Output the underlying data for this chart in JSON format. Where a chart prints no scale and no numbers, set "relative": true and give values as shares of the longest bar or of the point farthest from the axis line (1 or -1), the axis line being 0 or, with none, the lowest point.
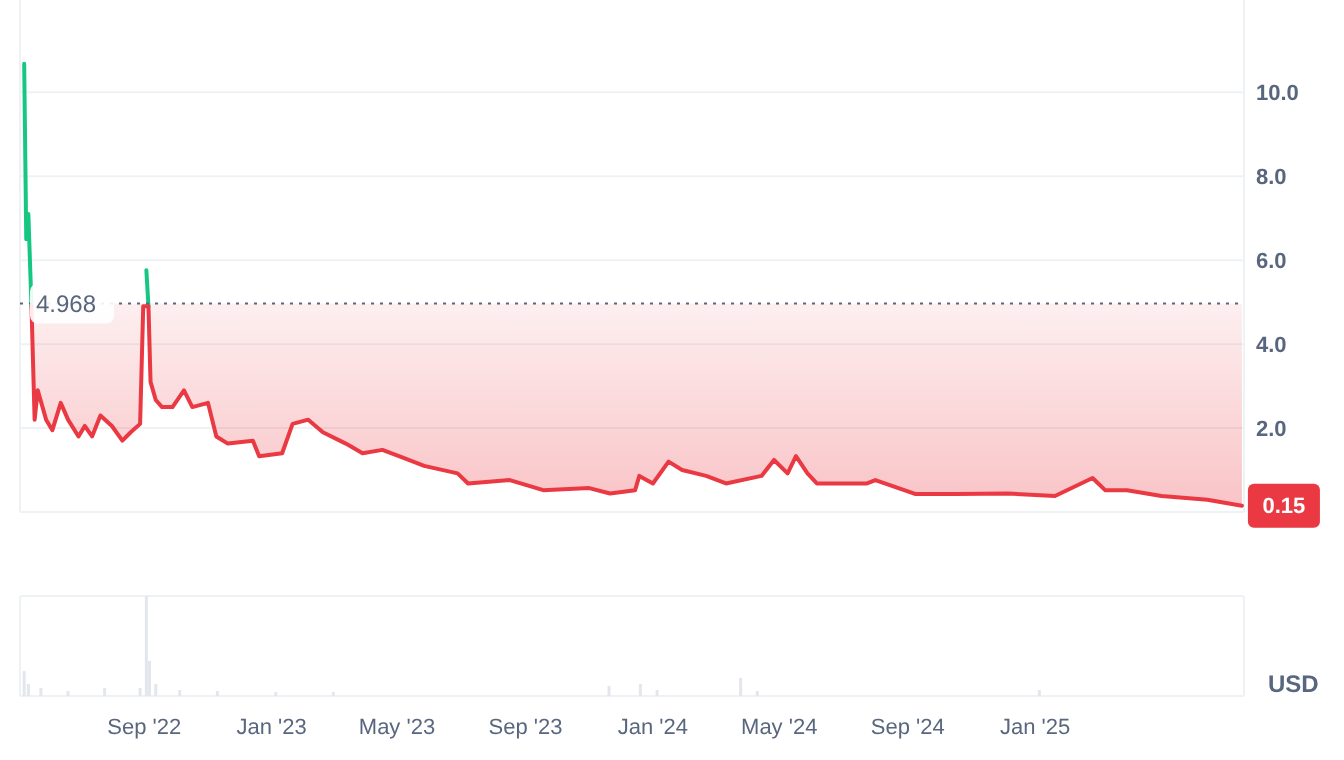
{
  "chart_data": [
    {
      "type": "line",
      "xlim": [
        "2022-05-05",
        "2025-07-20"
      ],
      "ylim": [
        0,
        12.2
      ],
      "yticks": [
        {
          "value": 0,
          "label": null
        },
        {
          "value": 2,
          "label": "2.0"
        },
        {
          "value": 4,
          "label": "4.0"
        },
        {
          "value": 6,
          "label": "6.0"
        },
        {
          "value": 8,
          "label": "8.0"
        },
        {
          "value": 10,
          "label": "10.0"
        }
      ],
      "grid": "y",
      "tick_labels": "y",
      "series": [
        {
          "color": "#16c784",
          "x": [
            "2022-05-09",
            "2022-05-11",
            "2022-05-13",
            "2022-05-16",
            "2022-08-31",
            "2022-09-03",
            "2022-09-05"
          ],
          "values": [
            10.68,
            6.5,
            7.1,
            4.9,
            null,
            5.76,
            4.9
          ]
        },
        {
          "color": "#ea3943",
          "x": [
            "2022-05-16",
            "2022-05-19",
            "2022-05-22",
            "2022-05-30",
            "2022-06-05",
            "2022-06-13",
            "2022-06-20",
            "2022-06-30",
            "2022-07-06",
            "2022-07-13",
            "2022-07-21",
            "2022-08-01",
            "2022-08-11",
            "2022-08-19",
            "2022-08-28",
            "2022-08-31",
            "2022-09-05",
            "2022-09-07",
            "2022-09-12",
            "2022-09-18",
            "2022-09-28",
            "2022-10-09",
            "2022-10-17",
            "2022-11-01",
            "2022-11-09",
            "2022-11-20",
            "2022-12-14",
            "2022-12-20",
            "2023-01-11",
            "2023-01-21",
            "2023-02-05",
            "2023-02-19",
            "2023-03-13",
            "2023-03-29",
            "2023-04-17",
            "2023-05-06",
            "2023-05-27",
            "2023-06-28",
            "2023-07-08",
            "2023-08-17",
            "2023-09-18",
            "2023-11-01",
            "2023-11-21",
            "2023-12-15",
            "2023-12-19",
            "2024-01-01",
            "2024-01-16",
            "2024-01-29",
            "2024-02-21",
            "2024-03-11",
            "2024-04-14",
            "2024-04-26",
            "2024-05-09",
            "2024-05-17",
            "2024-05-28",
            "2024-06-06",
            "2024-07-24",
            "2024-08-01",
            "2024-09-08",
            "2024-10-17",
            "2024-12-06",
            "2025-01-20",
            "2025-02-25",
            "2025-03-09",
            "2025-03-30",
            "2025-05-02",
            "2025-06-15",
            "2025-07-18"
          ],
          "values": [
            4.9,
            2.2,
            2.9,
            2.2,
            1.95,
            2.6,
            2.2,
            1.8,
            2.05,
            1.8,
            2.3,
            2.05,
            1.7,
            1.9,
            2.1,
            4.9,
            4.9,
            3.1,
            2.67,
            2.5,
            2.5,
            2.9,
            2.5,
            2.6,
            1.8,
            1.63,
            1.7,
            1.33,
            1.4,
            2.1,
            2.2,
            1.9,
            1.63,
            1.4,
            1.48,
            1.3,
            1.1,
            0.92,
            0.68,
            0.76,
            0.52,
            0.57,
            0.44,
            0.52,
            0.86,
            0.68,
            1.2,
            1.0,
            0.86,
            0.68,
            0.86,
            1.24,
            0.92,
            1.33,
            0.92,
            0.68,
            0.68,
            0.76,
            0.43,
            0.43,
            0.44,
            0.38,
            0.81,
            0.52,
            0.52,
            0.38,
            0.29,
            0.15
          ]
        }
      ],
      "ref_lines": [
        {
          "axis": "y",
          "value": 4.968,
          "label": "4.968",
          "color": "#58667e",
          "line_style": "dotted"
        }
      ],
      "annotations": [
        {
          "text": "0.15",
          "x": "2025-07-18",
          "y": 0.15
        }
      ]
    },
    {
      "type": "bar",
      "relative": true,
      "ylabel": "USD",
      "color": "#e3e6ec",
      "xlim": [
        "2022-05-05",
        "2025-07-20"
      ],
      "xticks": [
        {
          "value": "2022-09-01",
          "label": "Sep '22"
        },
        {
          "value": "2023-01-01",
          "label": "Jan '23"
        },
        {
          "value": "2023-05-01",
          "label": "May '23"
        },
        {
          "value": "2023-09-01",
          "label": "Sep '23"
        },
        {
          "value": "2024-01-01",
          "label": "Jan '24"
        },
        {
          "value": "2024-05-01",
          "label": "May '24"
        },
        {
          "value": "2024-09-01",
          "label": "Sep '24"
        },
        {
          "value": "2025-01-01",
          "label": "Jan '25"
        }
      ],
      "tick_labels": "x",
      "x": [
        "2022-05-09",
        "2022-05-13",
        "2022-05-25",
        "2022-06-20",
        "2022-07-25",
        "2022-08-28",
        "2022-09-03",
        "2022-09-06",
        "2022-09-12",
        "2022-10-05",
        "2022-11-10",
        "2023-01-05",
        "2023-03-01",
        "2023-11-20",
        "2023-12-20",
        "2024-01-05",
        "2024-03-25",
        "2024-04-10",
        "2025-01-05"
      ],
      "values": [
        0.25,
        0.12,
        0.08,
        0.05,
        0.08,
        0.08,
        1,
        0.35,
        0.12,
        0.06,
        0.05,
        0.04,
        0.04,
        0.1,
        0.12,
        0.06,
        0.18,
        0.05,
        0.06
      ]
    }
  ]
}
